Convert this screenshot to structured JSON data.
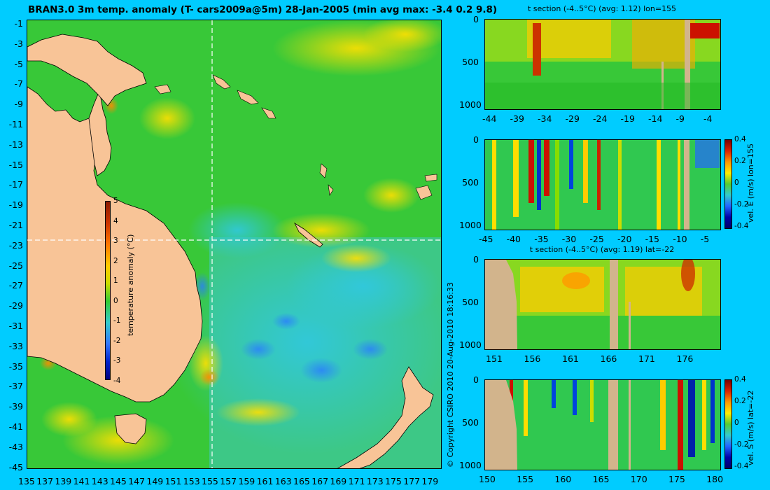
{
  "title": "BRAN3.0 3m temp. anomaly (T- cars2009a@5m) 28-Jan-2005 (min avg max: -3.4 0.2 9.8)",
  "copyright": "© Copyright CSIRO 2010   20-Aug-2010 18:16:33",
  "map": {
    "lat_ticks": [
      "-1",
      "-3",
      "-5",
      "-7",
      "-9",
      "-11",
      "-13",
      "-15",
      "-17",
      "-19",
      "-21",
      "-23",
      "-25",
      "-27",
      "-29",
      "-31",
      "-33",
      "-35",
      "-37",
      "-39",
      "-41",
      "-43",
      "-45"
    ],
    "lon_ticks": [
      "135",
      "137",
      "139",
      "141",
      "143",
      "145",
      "147",
      "149",
      "151",
      "153",
      "155",
      "157",
      "159",
      "161",
      "163",
      "165",
      "167",
      "169",
      "171",
      "173",
      "175",
      "177",
      "179"
    ],
    "colorbar": {
      "label": "temperature anomaly (°C)",
      "ticks": [
        "5",
        "4",
        "3",
        "2",
        "1",
        "0",
        "-1",
        "-2",
        "-3",
        "-4"
      ]
    },
    "section_lines": {
      "lon": 155,
      "lat": -22
    },
    "colors": {
      "land": "#f8c497",
      "ocean_base": "#33cc33",
      "warm": "#ffdd00",
      "cool": "#33ccdd"
    }
  },
  "panels": [
    {
      "title": "t section (-4..5°C) (avg: 1.12) lon=155",
      "y_ticks": [
        "0",
        "500",
        "1000"
      ],
      "x_ticks": [
        "-44",
        "-39",
        "-34",
        "-29",
        "-24",
        "-19",
        "-14",
        "-9",
        "-4"
      ],
      "side_label": "",
      "colorbar_ticks": []
    },
    {
      "title": "",
      "y_ticks": [
        "0",
        "500",
        "1000"
      ],
      "x_ticks": [
        "-45",
        "-40",
        "-35",
        "-30",
        "-25",
        "-20",
        "-15",
        "-10",
        "-5"
      ],
      "side_label": "vel. E (m/s) lon=155",
      "colorbar_ticks": [
        "0.4",
        "0.2",
        "0",
        "-0.2",
        "-0.4"
      ]
    },
    {
      "title": "t section (-4..5°C) (avg: 1.19) lat=-22",
      "y_ticks": [
        "0",
        "500",
        "1000"
      ],
      "x_ticks": [
        "151",
        "156",
        "161",
        "166",
        "171",
        "176"
      ],
      "side_label": "",
      "colorbar_ticks": []
    },
    {
      "title": "",
      "y_ticks": [
        "0",
        "500",
        "1000"
      ],
      "x_ticks": [
        "150",
        "155",
        "160",
        "165",
        "170",
        "175",
        "180"
      ],
      "side_label": "vel. S (m/s) lat=-22",
      "colorbar_ticks": [
        "0.4",
        "0.2",
        "0",
        "-0.2",
        "-0.4"
      ]
    }
  ]
}
